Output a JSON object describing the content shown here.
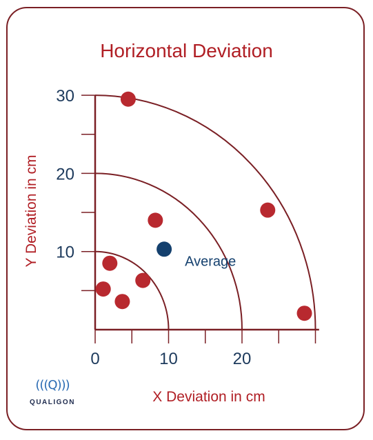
{
  "chart_data": {
    "type": "scatter",
    "title": "Horizontal Deviation",
    "xlabel": "X Deviation in cm",
    "ylabel": "Y Deviation in cm",
    "xlim": [
      0,
      30
    ],
    "ylim": [
      0,
      30
    ],
    "x_ticks": [
      0,
      10,
      20
    ],
    "y_ticks": [
      10,
      20,
      30
    ],
    "rings": [
      10,
      20,
      30
    ],
    "series": [
      {
        "points": [
          {
            "x": 4.5,
            "y": 29.5
          },
          {
            "x": 23.5,
            "y": 15.3
          },
          {
            "x": 28.5,
            "y": 2.1
          },
          {
            "x": 8.2,
            "y": 14.0
          },
          {
            "x": 2.0,
            "y": 8.5
          },
          {
            "x": 1.1,
            "y": 5.2
          },
          {
            "x": 3.7,
            "y": 3.6
          },
          {
            "x": 6.5,
            "y": 6.3
          }
        ],
        "color": "#b8292f"
      },
      {
        "name": "Average",
        "points": [
          {
            "x": 9.4,
            "y": 10.3
          }
        ],
        "color": "#14406e"
      }
    ],
    "annotations": [
      "Average"
    ],
    "axis_color": "#7a1f24",
    "ring_color": "#7a1f24",
    "tick_label_color": "#1d3a5c"
  },
  "logo": {
    "mark": "(((Q)))",
    "text": "QUALIGON"
  }
}
